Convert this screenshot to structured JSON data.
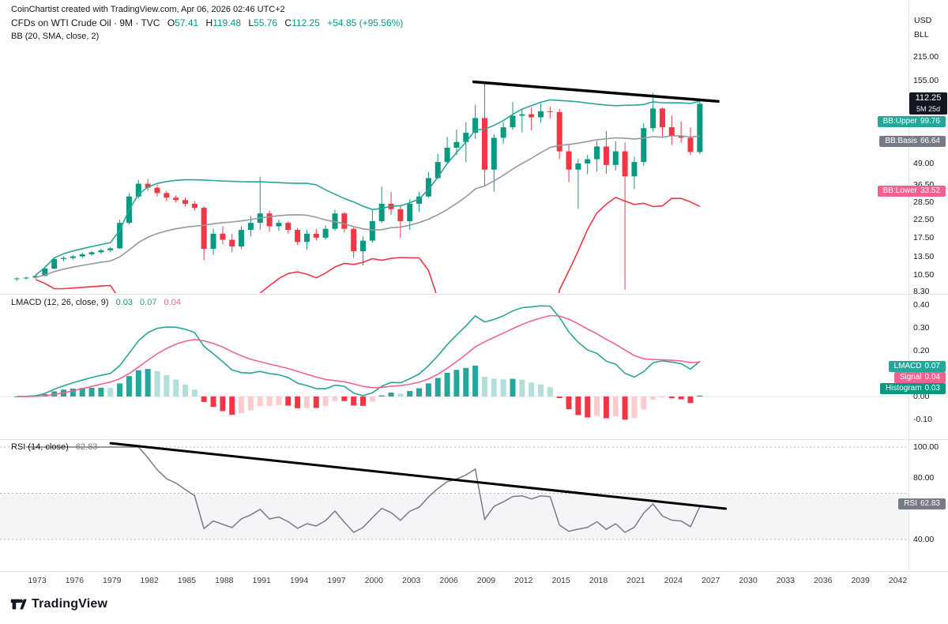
{
  "header": {
    "watermark": "CoinChartist created with TradingView.com, Apr 06, 2026 02:46 UTC+2",
    "symbol_text": "CFDs on WTI Crude Oil · 9M · TVC",
    "ohlc": {
      "o_label": "O",
      "o_value": "57.41",
      "h_label": "H",
      "h_value": "119.48",
      "l_label": "L",
      "l_value": "55.76",
      "c_label": "C",
      "c_value": "112.25",
      "change": "+54.85 (+95.56%)"
    },
    "bb_legend": "BB (20, SMA, close, 2)"
  },
  "macd_legend": {
    "title": "LMACD (12, 26, close, 9)",
    "hist": "0.03",
    "macd": "0.07",
    "signal": "0.04"
  },
  "rsi_legend": {
    "title": "RSI (14, close)",
    "value": "62.83"
  },
  "axis": {
    "currency": "USD",
    "unit": "BLL",
    "price_ticks": [
      {
        "label": "215.00",
        "value": 215
      },
      {
        "label": "155.00",
        "value": 155
      },
      {
        "label": "49.00",
        "value": 49
      },
      {
        "label": "36.50",
        "value": 36.5
      },
      {
        "label": "28.50",
        "value": 28.5
      },
      {
        "label": "22.50",
        "value": 22.5
      },
      {
        "label": "17.50",
        "value": 17.5
      },
      {
        "label": "13.50",
        "value": 13.5
      },
      {
        "label": "10.50",
        "value": 10.5
      },
      {
        "label": "8.30",
        "value": 8.3
      }
    ],
    "macd_ticks": [
      {
        "label": "0.40",
        "value": 0.4
      },
      {
        "label": "0.30",
        "value": 0.3
      },
      {
        "label": "0.20",
        "value": 0.2
      },
      {
        "label": "0.00",
        "value": 0.0
      },
      {
        "label": "-0.10",
        "value": -0.1
      }
    ],
    "rsi_ticks": [
      {
        "label": "100.00",
        "value": 100
      },
      {
        "label": "80.00",
        "value": 80
      },
      {
        "label": "40.00",
        "value": 40
      }
    ],
    "time_ticks": [
      1973,
      1976,
      1979,
      1982,
      1985,
      1988,
      1991,
      1994,
      1997,
      2000,
      2003,
      2006,
      2009,
      2012,
      2015,
      2018,
      2021,
      2024,
      2027,
      2030,
      2033,
      2036,
      2039,
      2042
    ]
  },
  "badges": {
    "price": {
      "text": "112.25",
      "value_num": 112.25,
      "countdown": "5M 25d"
    },
    "bb_upper": {
      "name": "BB:Upper",
      "value": "99.76",
      "value_num": 99.76
    },
    "bb_basis": {
      "name": "BB:Basis",
      "value": "66.64",
      "value_num": 66.64
    },
    "bb_lower": {
      "name": "BB:Lower",
      "value": "33.52",
      "value_num": 33.52
    },
    "macd": {
      "name": "LMACD",
      "value": "0.07"
    },
    "signal": {
      "name": "Signal",
      "value": "0.04"
    },
    "histogram": {
      "name": "Histogram",
      "value": "0.03"
    },
    "rsi": {
      "name": "RSI",
      "value": "62.83",
      "value_num": 62.83
    }
  },
  "footer": {
    "brand": "TradingView"
  },
  "colors": {
    "up": "#089981",
    "down": "#f23645",
    "bb_upper_line": "#26a69a",
    "bb_basis_line": "#9598a1",
    "bb_lower_line": "#f23645",
    "macd_line": "#26a69a",
    "signal_line": "#f06292",
    "hist_grow_above": "#26a69a",
    "hist_fall_above": "#b2dfdb",
    "hist_fall_below": "#f23645",
    "hist_grow_below": "#fccbcd",
    "rsi_line": "#787b86",
    "trendline": "#000000",
    "separator": "#e0e3eb",
    "rsi_band_fill": "rgba(120,123,134,0.08)",
    "rsi_level_line": "#b2b5be"
  },
  "chart_data": [
    {
      "type": "candlestick",
      "title": "CFDs on WTI Crude Oil",
      "interval": "9M",
      "exchange": "TVC",
      "log_scale": true,
      "x_start_year": 1971,
      "x_step_years": 0.75,
      "y_axis_visible_range": [
        8.3,
        215
      ],
      "ohlc": [
        [
          9.9,
          10.1,
          9.6,
          9.95
        ],
        [
          9.95,
          10.2,
          9.8,
          10.05
        ],
        [
          10.05,
          10.5,
          9.9,
          10.3
        ],
        [
          10.3,
          11.6,
          10.2,
          11.4
        ],
        [
          11.4,
          13.2,
          11.3,
          13.0
        ],
        [
          13.0,
          13.5,
          12.6,
          13.2
        ],
        [
          13.2,
          13.8,
          12.9,
          13.5
        ],
        [
          13.5,
          14.2,
          13.2,
          13.9
        ],
        [
          13.9,
          14.6,
          13.6,
          14.3
        ],
        [
          14.3,
          15.0,
          14.0,
          14.7
        ],
        [
          14.7,
          15.4,
          14.3,
          15.1
        ],
        [
          15.1,
          22.5,
          15.0,
          21.5
        ],
        [
          21.5,
          32.5,
          21.0,
          31.0
        ],
        [
          31.0,
          39.0,
          30.0,
          37.0
        ],
        [
          37.0,
          39.5,
          33.5,
          35.0
        ],
        [
          35.0,
          36.5,
          31.0,
          32.5
        ],
        [
          32.5,
          33.5,
          29.0,
          30.5
        ],
        [
          30.5,
          31.5,
          28.5,
          29.5
        ],
        [
          29.5,
          30.5,
          27.0,
          28.0
        ],
        [
          28.0,
          29.0,
          25.5,
          26.5
        ],
        [
          26.5,
          27.0,
          12.8,
          15.0
        ],
        [
          15.0,
          19.8,
          13.8,
          18.5
        ],
        [
          18.5,
          20.5,
          16.0,
          17.0
        ],
        [
          17.0,
          18.5,
          14.3,
          15.5
        ],
        [
          15.5,
          20.5,
          15.0,
          19.5
        ],
        [
          19.5,
          23.5,
          17.8,
          21.5
        ],
        [
          21.5,
          40.8,
          19.5,
          24.5
        ],
        [
          24.5,
          25.5,
          19.0,
          20.5
        ],
        [
          20.5,
          22.5,
          19.3,
          21.5
        ],
        [
          21.5,
          22.0,
          18.5,
          19.5
        ],
        [
          19.5,
          20.0,
          15.8,
          16.5
        ],
        [
          16.5,
          19.5,
          14.8,
          18.5
        ],
        [
          18.5,
          19.8,
          16.8,
          17.5
        ],
        [
          17.5,
          20.8,
          17.0,
          19.8
        ],
        [
          19.8,
          25.8,
          19.3,
          24.5
        ],
        [
          24.5,
          25.0,
          18.8,
          19.8
        ],
        [
          19.8,
          20.3,
          13.2,
          14.5
        ],
        [
          14.5,
          17.8,
          11.9,
          16.8
        ],
        [
          16.8,
          26.0,
          16.3,
          22.0
        ],
        [
          22.0,
          35.5,
          21.5,
          28.0
        ],
        [
          28.0,
          33.0,
          24.0,
          26.0
        ],
        [
          26.0,
          27.5,
          17.5,
          22.0
        ],
        [
          22.0,
          29.8,
          19.5,
          28.0
        ],
        [
          28.0,
          33.0,
          25.0,
          31.0
        ],
        [
          31.0,
          43.5,
          30.5,
          40.0
        ],
        [
          40.0,
          56.0,
          39.5,
          50.0
        ],
        [
          50.0,
          70.8,
          48.5,
          61.0
        ],
        [
          61.0,
          78.4,
          55.0,
          66.0
        ],
        [
          66.0,
          87.0,
          49.9,
          75.0
        ],
        [
          75.0,
          111.0,
          69.0,
          92.0
        ],
        [
          92.0,
          147.3,
          36.0,
          45.0
        ],
        [
          45.0,
          73.5,
          33.2,
          70.0
        ],
        [
          70.0,
          87.0,
          64.5,
          81.0
        ],
        [
          81.0,
          114.8,
          78.0,
          95.0
        ],
        [
          95.0,
          103.5,
          75.5,
          97.0
        ],
        [
          97.0,
          106.5,
          77.5,
          93.0
        ],
        [
          93.0,
          112.2,
          86.0,
          101.0
        ],
        [
          101.0,
          107.7,
          91.5,
          100.0
        ],
        [
          100.0,
          104.5,
          52.0,
          58.0
        ],
        [
          58.0,
          63.5,
          37.8,
          45.0
        ],
        [
          45.0,
          52.2,
          26.1,
          49.0
        ],
        [
          49.0,
          55.2,
          42.2,
          52.0
        ],
        [
          52.0,
          66.6,
          43.8,
          62.0
        ],
        [
          62.0,
          76.9,
          42.4,
          48.0
        ],
        [
          48.0,
          66.6,
          44.4,
          58.0
        ],
        [
          58.0,
          65.7,
          8.5,
          41.0
        ],
        [
          41.0,
          53.9,
          34.4,
          50.0
        ],
        [
          50.0,
          85.4,
          47.3,
          80.0
        ],
        [
          80.0,
          130.5,
          76.3,
          105.0
        ],
        [
          105.0,
          106.5,
          70.1,
          81.0
        ],
        [
          81.0,
          95.0,
          63.6,
          72.0
        ],
        [
          72.0,
          87.7,
          65.3,
          70.0
        ],
        [
          70.0,
          80.8,
          55.1,
          57.41
        ],
        [
          57.41,
          119.48,
          55.76,
          112.25
        ]
      ],
      "overlay": {
        "name": "BB",
        "period": 20,
        "ma_type": "SMA",
        "source": "close",
        "stdev": 2,
        "last_upper": 99.76,
        "last_basis": 66.64,
        "last_lower": 33.52
      },
      "trendline": {
        "x1_year": 2008.0,
        "y1_price": 152,
        "x2_year": 2027.6,
        "y2_price": 116
      }
    },
    {
      "type": "macd",
      "name": "LMACD",
      "params": {
        "fast": 12,
        "slow": 26,
        "source": "log close",
        "signal_period": 9
      },
      "derived_from": "chart_data[0].ohlc closes",
      "last": {
        "macd": 0.07,
        "signal": 0.04,
        "histogram": 0.03
      },
      "visible_ticks": [
        0.4,
        0.3,
        0.2,
        0.0,
        -0.1
      ]
    },
    {
      "type": "line",
      "name": "RSI",
      "params": {
        "period": 14,
        "source": "close"
      },
      "derived_from": "chart_data[0].ohlc closes",
      "last": 62.83,
      "levels": [
        100,
        70,
        40
      ],
      "band": [
        40,
        70
      ],
      "trendline": {
        "x1_year": 1978.9,
        "y1_value": 102.5,
        "x2_year": 2028.2,
        "y2_value": 60.0
      }
    }
  ]
}
